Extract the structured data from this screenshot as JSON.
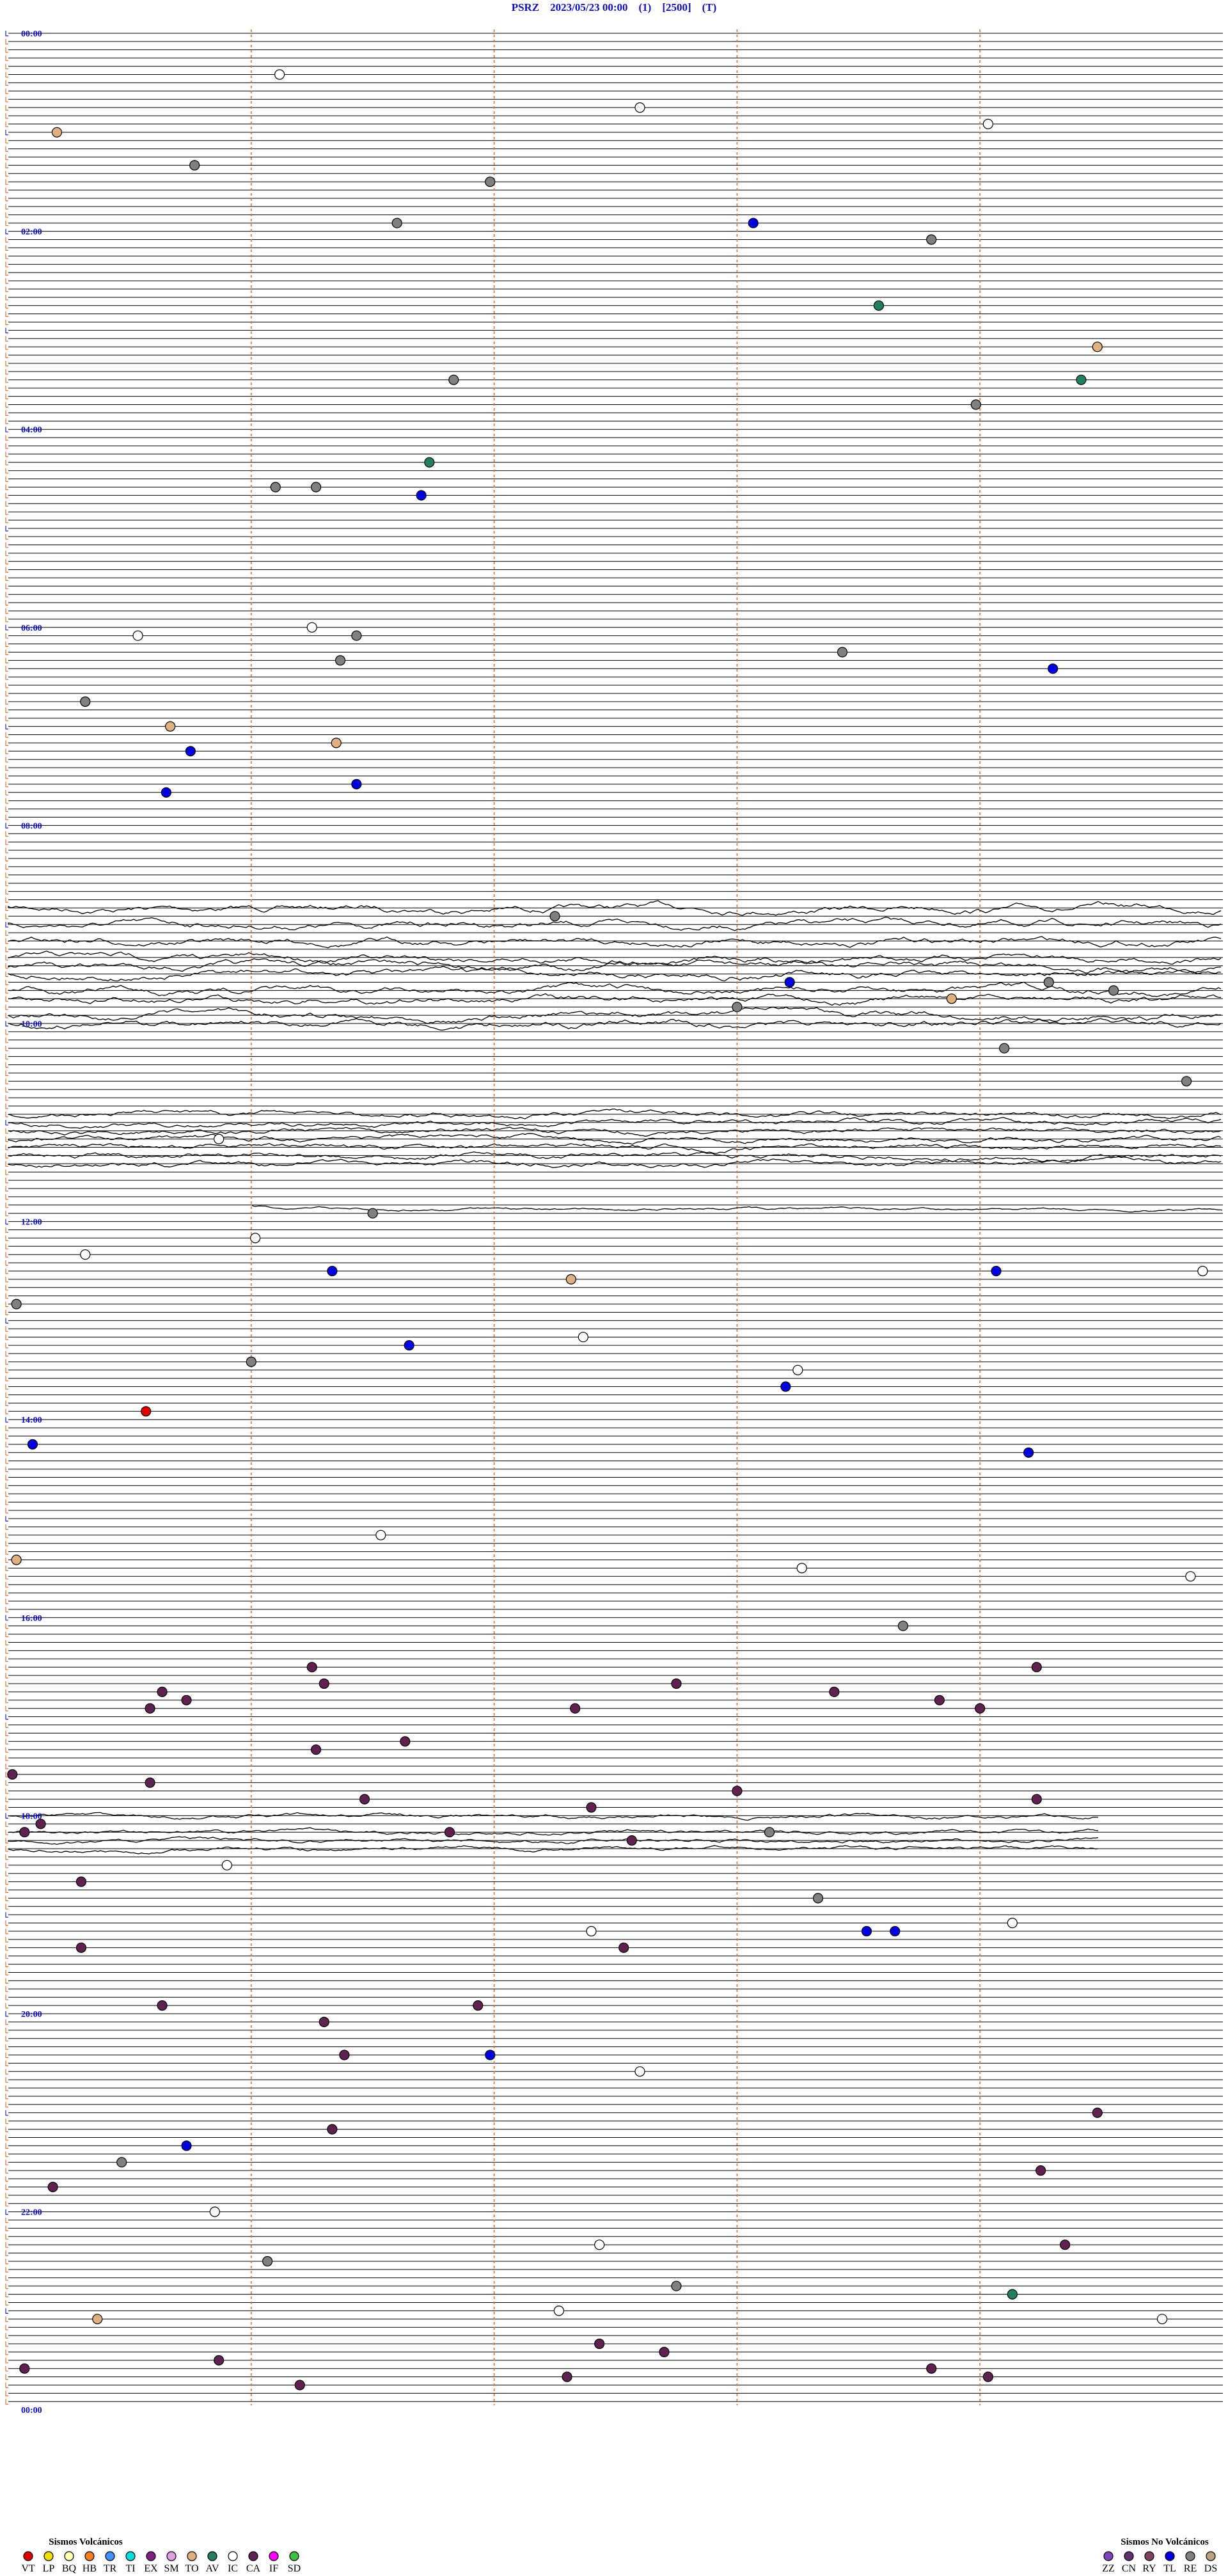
{
  "header": {
    "title": "PSRZ    2023/05/23 00:00    (1)    [2500]    (T)"
  },
  "time_labels": [
    "00:00",
    "02:00",
    "04:00",
    "06:00",
    "08:00",
    "10:00",
    "12:00",
    "14:00",
    "16:00",
    "18:00",
    "20:00",
    "22:00",
    "00:00"
  ],
  "trace_count": 288,
  "xlim": [
    0,
    300
  ],
  "legend": {
    "volcanic": {
      "title": "Sismos Volcánicos",
      "items": [
        {
          "code": "VT",
          "color": "#e00000"
        },
        {
          "code": "LP",
          "color": "#f0e000"
        },
        {
          "code": "BQ",
          "color": "#ffffb0"
        },
        {
          "code": "HB",
          "color": "#f08020"
        },
        {
          "code": "TR",
          "color": "#4090ff"
        },
        {
          "code": "TI",
          "color": "#00e0e0"
        },
        {
          "code": "EX",
          "color": "#802080"
        },
        {
          "code": "SM",
          "color": "#e0a0e0"
        },
        {
          "code": "TO",
          "color": "#e0b080"
        },
        {
          "code": "AV",
          "color": "#208060"
        },
        {
          "code": "IC",
          "color": "#ffffff"
        },
        {
          "code": "CA",
          "color": "#602050"
        },
        {
          "code": "IF",
          "color": "#ff00ff"
        },
        {
          "code": "SD",
          "color": "#40c040"
        }
      ]
    },
    "non_volcanic": {
      "title": "Sismos No Volcánicos",
      "items": [
        {
          "code": "ZZ",
          "color": "#8040c0"
        },
        {
          "code": "CN",
          "color": "#603070"
        },
        {
          "code": "RY",
          "color": "#804060"
        },
        {
          "code": "TL",
          "color": "#0000e0"
        },
        {
          "code": "RE",
          "color": "#808080"
        },
        {
          "code": "DS",
          "color": "#c0a080"
        }
      ]
    }
  },
  "events": [
    {
      "trace": 5,
      "sec": 67,
      "type": "IC"
    },
    {
      "trace": 9,
      "sec": 156,
      "type": "IC"
    },
    {
      "trace": 11,
      "sec": 242,
      "type": "IC"
    },
    {
      "trace": 12,
      "sec": 12,
      "type": "TO"
    },
    {
      "trace": 16,
      "sec": 46,
      "type": "RE"
    },
    {
      "trace": 18,
      "sec": 119,
      "type": "RE"
    },
    {
      "trace": 23,
      "sec": 96,
      "type": "RE"
    },
    {
      "trace": 23,
      "sec": 184,
      "type": "TL"
    },
    {
      "trace": 25,
      "sec": 228,
      "type": "RE"
    },
    {
      "trace": 33,
      "sec": 215,
      "type": "AV"
    },
    {
      "trace": 38,
      "sec": 269,
      "type": "TO"
    },
    {
      "trace": 42,
      "sec": 110,
      "type": "RE"
    },
    {
      "trace": 42,
      "sec": 265,
      "type": "AV"
    },
    {
      "trace": 45,
      "sec": 239,
      "type": "RE"
    },
    {
      "trace": 52,
      "sec": 104,
      "type": "AV"
    },
    {
      "trace": 55,
      "sec": 66,
      "type": "RE"
    },
    {
      "trace": 55,
      "sec": 76,
      "type": "RE"
    },
    {
      "trace": 56,
      "sec": 102,
      "type": "TL"
    },
    {
      "trace": 73,
      "sec": 32,
      "type": "IC"
    },
    {
      "trace": 72,
      "sec": 75,
      "type": "IC"
    },
    {
      "trace": 73,
      "sec": 86,
      "type": "RE"
    },
    {
      "trace": 75,
      "sec": 206,
      "type": "RE"
    },
    {
      "trace": 76,
      "sec": 82,
      "type": "RE"
    },
    {
      "trace": 77,
      "sec": 258,
      "type": "TL"
    },
    {
      "trace": 81,
      "sec": 19,
      "type": "RE"
    },
    {
      "trace": 84,
      "sec": 40,
      "type": "TO"
    },
    {
      "trace": 87,
      "sec": 45,
      "type": "TL"
    },
    {
      "trace": 86,
      "sec": 81,
      "type": "TO"
    },
    {
      "trace": 92,
      "sec": 39,
      "type": "TL"
    },
    {
      "trace": 91,
      "sec": 86,
      "type": "TL"
    },
    {
      "trace": 107,
      "sec": 135,
      "type": "RE"
    },
    {
      "trace": 115,
      "sec": 193,
      "type": "TL"
    },
    {
      "trace": 115,
      "sec": 257,
      "type": "RE"
    },
    {
      "trace": 116,
      "sec": 273,
      "type": "RE"
    },
    {
      "trace": 117,
      "sec": 233,
      "type": "TO"
    },
    {
      "trace": 118,
      "sec": 180,
      "type": "RE"
    },
    {
      "trace": 123,
      "sec": 246,
      "type": "RE"
    },
    {
      "trace": 127,
      "sec": 291,
      "type": "RE"
    },
    {
      "trace": 134,
      "sec": 52,
      "type": "IC"
    },
    {
      "trace": 143,
      "sec": 90,
      "type": "RE"
    },
    {
      "trace": 146,
      "sec": 61,
      "type": "IC"
    },
    {
      "trace": 148,
      "sec": 19,
      "type": "IC"
    },
    {
      "trace": 150,
      "sec": 80,
      "type": "TL"
    },
    {
      "trace": 151,
      "sec": 139,
      "type": "TO"
    },
    {
      "trace": 150,
      "sec": 244,
      "type": "TL"
    },
    {
      "trace": 150,
      "sec": 295,
      "type": "IC"
    },
    {
      "trace": 154,
      "sec": 2,
      "type": "RE"
    },
    {
      "trace": 159,
      "sec": 99,
      "type": "TL"
    },
    {
      "trace": 158,
      "sec": 142,
      "type": "IC"
    },
    {
      "trace": 161,
      "sec": 60,
      "type": "RE"
    },
    {
      "trace": 162,
      "sec": 195,
      "type": "IC"
    },
    {
      "trace": 164,
      "sec": 192,
      "type": "TL"
    },
    {
      "trace": 167,
      "sec": 34,
      "type": "VT"
    },
    {
      "trace": 171,
      "sec": 6,
      "type": "TL"
    },
    {
      "trace": 172,
      "sec": 252,
      "type": "TL"
    },
    {
      "trace": 182,
      "sec": 92,
      "type": "IC"
    },
    {
      "trace": 185,
      "sec": 2,
      "type": "TO"
    },
    {
      "trace": 186,
      "sec": 196,
      "type": "IC"
    },
    {
      "trace": 187,
      "sec": 292,
      "type": "IC"
    },
    {
      "trace": 193,
      "sec": 221,
      "type": "RE"
    },
    {
      "trace": 198,
      "sec": 75,
      "type": "CA"
    },
    {
      "trace": 198,
      "sec": 254,
      "type": "CA"
    },
    {
      "trace": 200,
      "sec": 78,
      "type": "CA"
    },
    {
      "trace": 200,
      "sec": 165,
      "type": "CA"
    },
    {
      "trace": 201,
      "sec": 38,
      "type": "CA"
    },
    {
      "trace": 201,
      "sec": 204,
      "type": "CA"
    },
    {
      "trace": 202,
      "sec": 44,
      "type": "CA"
    },
    {
      "trace": 202,
      "sec": 230,
      "type": "CA"
    },
    {
      "trace": 203,
      "sec": 35,
      "type": "CA"
    },
    {
      "trace": 203,
      "sec": 140,
      "type": "CA"
    },
    {
      "trace": 203,
      "sec": 240,
      "type": "CA"
    },
    {
      "trace": 207,
      "sec": 98,
      "type": "CA"
    },
    {
      "trace": 208,
      "sec": 76,
      "type": "CA"
    },
    {
      "trace": 211,
      "sec": 1,
      "type": "CA"
    },
    {
      "trace": 212,
      "sec": 35,
      "type": "CA"
    },
    {
      "trace": 213,
      "sec": 180,
      "type": "CA"
    },
    {
      "trace": 214,
      "sec": 88,
      "type": "CA"
    },
    {
      "trace": 214,
      "sec": 254,
      "type": "CA"
    },
    {
      "trace": 215,
      "sec": 144,
      "type": "CA"
    },
    {
      "trace": 217,
      "sec": 8,
      "type": "CA"
    },
    {
      "trace": 218,
      "sec": 4,
      "type": "CA"
    },
    {
      "trace": 218,
      "sec": 109,
      "type": "CA"
    },
    {
      "trace": 218,
      "sec": 188,
      "type": "RE"
    },
    {
      "trace": 219,
      "sec": 154,
      "type": "CA"
    },
    {
      "trace": 222,
      "sec": 54,
      "type": "IC"
    },
    {
      "trace": 224,
      "sec": 18,
      "type": "CA"
    },
    {
      "trace": 226,
      "sec": 200,
      "type": "RE"
    },
    {
      "trace": 229,
      "sec": 248,
      "type": "IC"
    },
    {
      "trace": 230,
      "sec": 212,
      "type": "TL"
    },
    {
      "trace": 230,
      "sec": 219,
      "type": "TL"
    },
    {
      "trace": 230,
      "sec": 144,
      "type": "IC"
    },
    {
      "trace": 232,
      "sec": 18,
      "type": "CA"
    },
    {
      "trace": 232,
      "sec": 152,
      "type": "CA"
    },
    {
      "trace": 239,
      "sec": 38,
      "type": "CA"
    },
    {
      "trace": 239,
      "sec": 116,
      "type": "CA"
    },
    {
      "trace": 241,
      "sec": 78,
      "type": "CA"
    },
    {
      "trace": 245,
      "sec": 83,
      "type": "CA"
    },
    {
      "trace": 245,
      "sec": 119,
      "type": "TL"
    },
    {
      "trace": 247,
      "sec": 156,
      "type": "IC"
    },
    {
      "trace": 252,
      "sec": 269,
      "type": "CA"
    },
    {
      "trace": 254,
      "sec": 80,
      "type": "CA"
    },
    {
      "trace": 256,
      "sec": 44,
      "type": "TL"
    },
    {
      "trace": 258,
      "sec": 28,
      "type": "RE"
    },
    {
      "trace": 259,
      "sec": 255,
      "type": "CA"
    },
    {
      "trace": 261,
      "sec": 11,
      "type": "CA"
    },
    {
      "trace": 264,
      "sec": 51,
      "type": "IC"
    },
    {
      "trace": 268,
      "sec": 146,
      "type": "IC"
    },
    {
      "trace": 268,
      "sec": 261,
      "type": "CA"
    },
    {
      "trace": 270,
      "sec": 64,
      "type": "RE"
    },
    {
      "trace": 273,
      "sec": 165,
      "type": "RE"
    },
    {
      "trace": 274,
      "sec": 248,
      "type": "AV"
    },
    {
      "trace": 276,
      "sec": 136,
      "type": "IC"
    },
    {
      "trace": 277,
      "sec": 285,
      "type": "IC"
    },
    {
      "trace": 277,
      "sec": 22,
      "type": "TO"
    },
    {
      "trace": 280,
      "sec": 146,
      "type": "CA"
    },
    {
      "trace": 281,
      "sec": 162,
      "type": "CA"
    },
    {
      "trace": 282,
      "sec": 52,
      "type": "CA"
    },
    {
      "trace": 283,
      "sec": 4,
      "type": "CA"
    },
    {
      "trace": 283,
      "sec": 228,
      "type": "CA"
    },
    {
      "trace": 284,
      "sec": 138,
      "type": "CA"
    },
    {
      "trace": 284,
      "sec": 242,
      "type": "CA"
    },
    {
      "trace": 285,
      "sec": 72,
      "type": "CA"
    }
  ]
}
